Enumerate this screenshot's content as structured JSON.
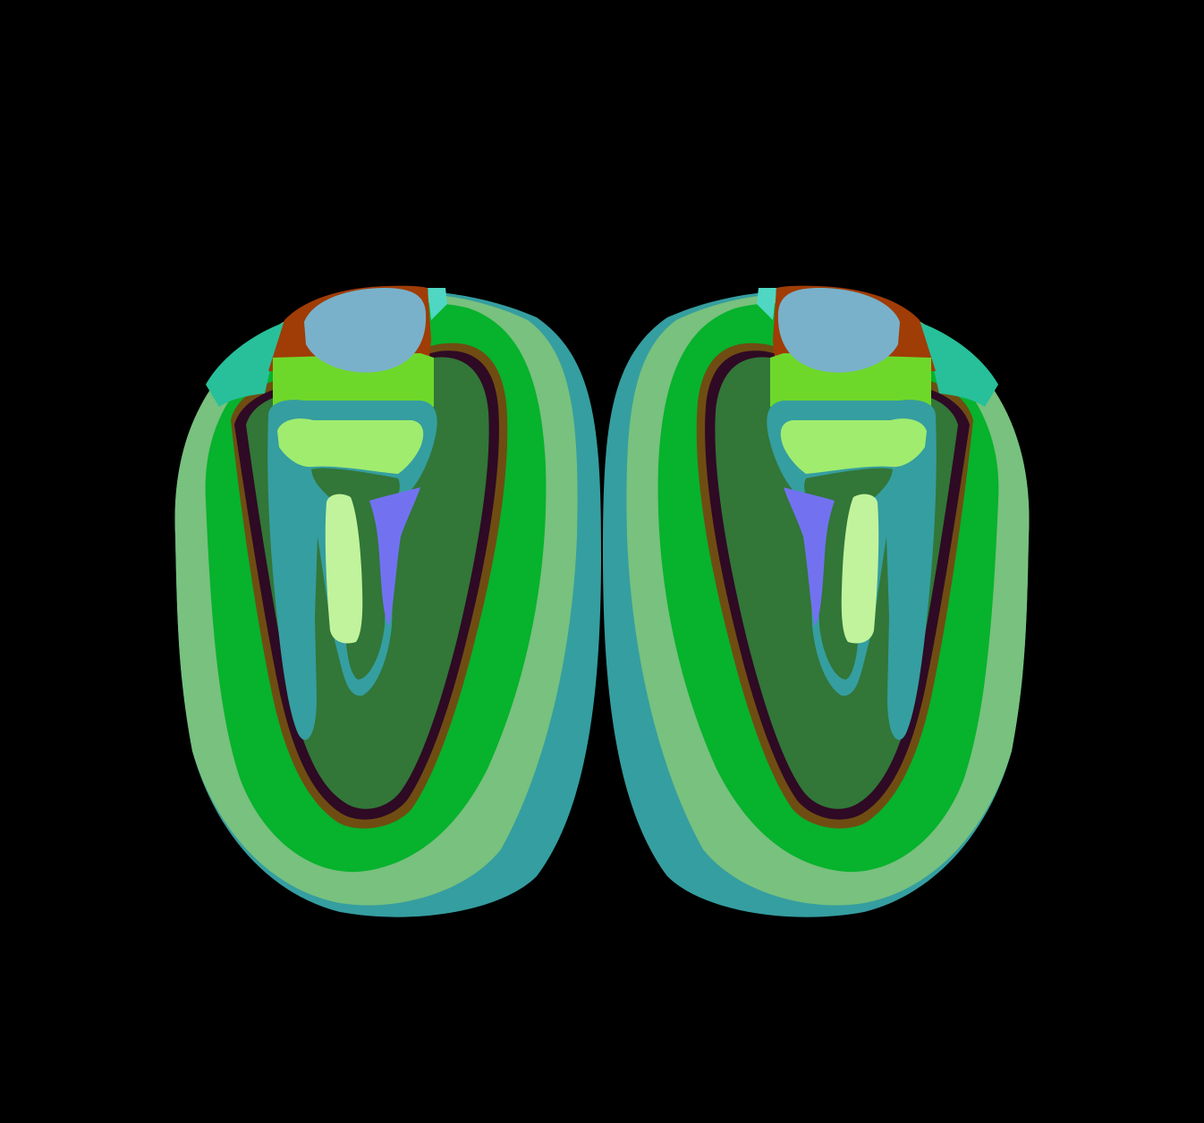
{
  "figure": {
    "background": "#000000",
    "region_colors": {
      "outer_rim": "#359ea0",
      "outer_band": "#78c17e",
      "green_band": "#07b22d",
      "dark_core": "#327638",
      "dark_outline": "#2e0a24",
      "brown_outline": "#6f4d12",
      "top_cap": "#79b1ca",
      "rust_band": "#a03c06",
      "lime_band": "#6ed82a",
      "teal_accent": "#27c09a",
      "cyan_tip": "#4fd7c3",
      "pale_green": "#a0ec6e",
      "teal_stroke": "#359ea0",
      "lightest_green": "#c1f39c",
      "violet": "#7272f1"
    }
  }
}
